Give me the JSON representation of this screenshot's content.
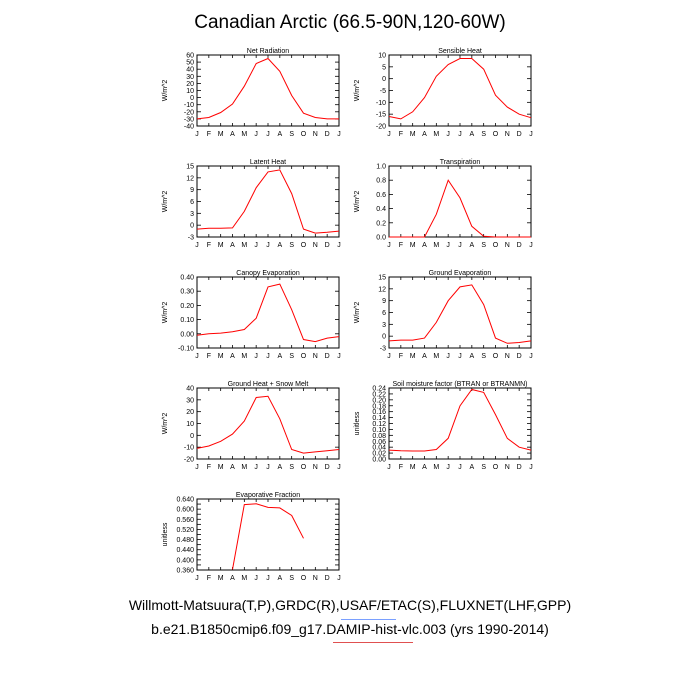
{
  "page": {
    "title": "Canadian Arctic (66.5-90N,120-60W)",
    "footer_line1": "Willmott-Matsuura(T,P),GRDC(R),USAF/ETAC(S),FLUXNET(LHF,GPP)",
    "footer_line2": "b.e21.B1850cmip6.f09_g17.DAMIP-hist-vlc.003 (yrs 1990-2014)"
  },
  "colors": {
    "line": "#ff0000",
    "axis": "#000000"
  },
  "chart_data": [
    {
      "type": "line",
      "title": "Net Radiation",
      "ylabel": "W/m^2",
      "categories": [
        "J",
        "F",
        "M",
        "A",
        "M",
        "J",
        "J",
        "A",
        "S",
        "O",
        "N",
        "D",
        "J"
      ],
      "ylim": [
        -40,
        60
      ],
      "yticks": [
        -40,
        -30,
        -20,
        -10,
        0,
        10,
        20,
        30,
        40,
        50,
        60
      ],
      "ytick_labels": [
        "-40",
        "-30",
        "-20",
        "-10",
        "0",
        "10",
        "20",
        "30",
        "40",
        "50",
        "60"
      ],
      "series": [
        {
          "values": [
            -30,
            -28,
            -21,
            -9,
            16,
            48,
            55,
            37,
            3,
            -22,
            -28,
            -30,
            -30
          ]
        }
      ]
    },
    {
      "type": "line",
      "title": "Sensible Heat",
      "ylabel": "W/m^2",
      "categories": [
        "J",
        "F",
        "M",
        "A",
        "M",
        "J",
        "J",
        "A",
        "S",
        "O",
        "N",
        "D",
        "J"
      ],
      "ylim": [
        -20,
        10
      ],
      "yticks": [
        -20,
        -15,
        -10,
        -5,
        0,
        5,
        10
      ],
      "ytick_labels": [
        "-20",
        "-15",
        "-10",
        "-5",
        "0",
        "5",
        "10"
      ],
      "series": [
        {
          "values": [
            -16,
            -17,
            -14,
            -8,
            1,
            6,
            8.5,
            8.5,
            4,
            -7,
            -12,
            -15,
            -16.5
          ]
        }
      ]
    },
    {
      "type": "line",
      "title": "Latent Heat",
      "ylabel": "W/m^2",
      "categories": [
        "J",
        "F",
        "M",
        "A",
        "M",
        "J",
        "J",
        "A",
        "S",
        "O",
        "N",
        "D",
        "J"
      ],
      "ylim": [
        -3,
        15
      ],
      "yticks": [
        -3,
        0,
        3,
        6,
        9,
        12,
        15
      ],
      "ytick_labels": [
        "-3",
        "0",
        "3",
        "6",
        "9",
        "12",
        "15"
      ],
      "series": [
        {
          "values": [
            -1,
            -0.8,
            -0.8,
            -0.7,
            3.5,
            9.5,
            13.5,
            14,
            8,
            -1,
            -2,
            -1.8,
            -1.5
          ]
        }
      ]
    },
    {
      "type": "line",
      "title": "Transpiration",
      "ylabel": "W/m^2",
      "categories": [
        "J",
        "F",
        "M",
        "A",
        "M",
        "J",
        "J",
        "A",
        "S",
        "O",
        "N",
        "D",
        "J"
      ],
      "ylim": [
        0,
        1.0
      ],
      "yticks": [
        0,
        0.2,
        0.4,
        0.6,
        0.8,
        1.0
      ],
      "ytick_labels": [
        "0.0",
        "0.2",
        "0.4",
        "0.6",
        "0.8",
        "1.0"
      ],
      "series": [
        {
          "values": [
            0,
            0,
            0,
            0,
            0.32,
            0.8,
            0.55,
            0.15,
            0.01,
            0,
            0,
            0,
            0
          ]
        }
      ]
    },
    {
      "type": "line",
      "title": "Canopy Evaporation",
      "ylabel": "W/m^2",
      "categories": [
        "J",
        "F",
        "M",
        "A",
        "M",
        "J",
        "J",
        "A",
        "S",
        "O",
        "N",
        "D",
        "J"
      ],
      "ylim": [
        -0.1,
        0.4
      ],
      "yticks": [
        -0.1,
        0,
        0.1,
        0.2,
        0.3,
        0.4
      ],
      "ytick_labels": [
        "-0.10",
        "0.00",
        "0.10",
        "0.20",
        "0.30",
        "0.40"
      ],
      "series": [
        {
          "values": [
            -0.01,
            0,
            0.005,
            0.015,
            0.03,
            0.11,
            0.33,
            0.35,
            0.17,
            -0.04,
            -0.055,
            -0.03,
            -0.02
          ]
        }
      ]
    },
    {
      "type": "line",
      "title": "Ground Evaporation",
      "ylabel": "W/m^2",
      "categories": [
        "J",
        "F",
        "M",
        "A",
        "M",
        "J",
        "J",
        "A",
        "S",
        "O",
        "N",
        "D",
        "J"
      ],
      "ylim": [
        -3,
        15
      ],
      "yticks": [
        -3,
        0,
        3,
        6,
        9,
        12,
        15
      ],
      "ytick_labels": [
        "-3",
        "0",
        "3",
        "6",
        "9",
        "12",
        "15"
      ],
      "series": [
        {
          "values": [
            -1.2,
            -1,
            -1,
            -0.5,
            3.5,
            9,
            12.5,
            13,
            8,
            -0.5,
            -1.8,
            -1.6,
            -1.2
          ]
        }
      ]
    },
    {
      "type": "line",
      "title": "Ground Heat + Snow Melt",
      "ylabel": "W/m^2",
      "categories": [
        "J",
        "F",
        "M",
        "A",
        "M",
        "J",
        "J",
        "A",
        "S",
        "O",
        "N",
        "D",
        "J"
      ],
      "ylim": [
        -20,
        40
      ],
      "yticks": [
        -20,
        -10,
        0,
        10,
        20,
        30,
        40
      ],
      "ytick_labels": [
        "-20",
        "-10",
        "0",
        "10",
        "20",
        "30",
        "40"
      ],
      "series": [
        {
          "values": [
            -11,
            -9,
            -5,
            1,
            12,
            32,
            33,
            14,
            -12,
            -15,
            -14,
            -13,
            -12
          ]
        }
      ]
    },
    {
      "type": "line",
      "title": "Soil moisture factor (BTRAN or BTRANMN)",
      "ylabel": "unitless",
      "categories": [
        "J",
        "F",
        "M",
        "A",
        "M",
        "J",
        "J",
        "A",
        "S",
        "O",
        "N",
        "D",
        "J"
      ],
      "ylim": [
        0,
        0.24
      ],
      "yticks": [
        0,
        0.02,
        0.04,
        0.06,
        0.08,
        0.1,
        0.12,
        0.14,
        0.16,
        0.18,
        0.2,
        0.22,
        0.24
      ],
      "ytick_labels": [
        "0.00",
        "0.02",
        "0.04",
        "0.06",
        "0.08",
        "0.10",
        "0.12",
        "0.14",
        "0.16",
        "0.18",
        "0.20",
        "0.22",
        "0.24"
      ],
      "series": [
        {
          "values": [
            0.03,
            0.028,
            0.027,
            0.027,
            0.032,
            0.07,
            0.18,
            0.235,
            0.225,
            0.15,
            0.07,
            0.04,
            0.03
          ]
        }
      ]
    },
    {
      "type": "line",
      "title": "Evaporative Fraction",
      "ylabel": "unitless",
      "categories": [
        "J",
        "F",
        "M",
        "A",
        "M",
        "J",
        "J",
        "A",
        "S",
        "O",
        "N",
        "D",
        "J"
      ],
      "ylim": [
        0.36,
        0.64
      ],
      "yticks": [
        0.36,
        0.38,
        0.4,
        0.42,
        0.44,
        0.46,
        0.48,
        0.5,
        0.52,
        0.54,
        0.56,
        0.58,
        0.6,
        0.62,
        0.64
      ],
      "ytick_labels": [
        "0.360",
        "",
        "0.400",
        "",
        "0.440",
        "",
        "0.480",
        "",
        "0.520",
        "",
        "0.560",
        "",
        "0.600",
        "",
        "0.640"
      ],
      "series": [
        {
          "values": [
            null,
            null,
            null,
            0.362,
            0.618,
            0.621,
            0.607,
            0.605,
            0.575,
            0.485,
            null,
            null,
            null
          ]
        }
      ]
    }
  ]
}
